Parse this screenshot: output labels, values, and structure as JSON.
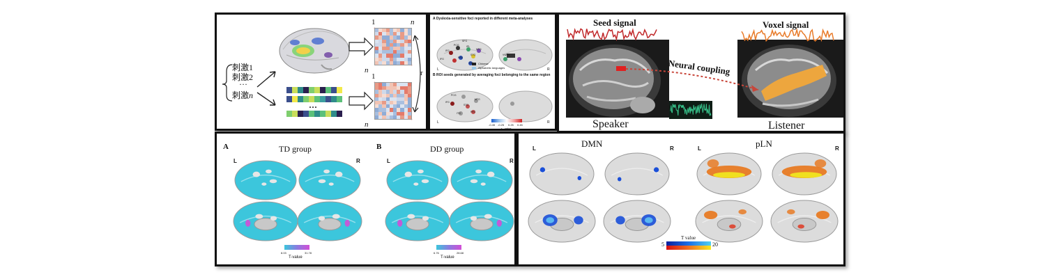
{
  "panel1": {
    "stimuli": [
      "刺激1",
      "刺激2",
      "···",
      "刺激"
    ],
    "stimulus_n": "n",
    "matrix_top_label_1": "1",
    "matrix_top_label_n": "n",
    "matrix_side_label_n": "n",
    "matrix_bottom_label_1": "1",
    "matrix_bottom_side_label_n": "n",
    "bar_dots": "···",
    "right_label": "r"
  },
  "panel2": {
    "title_a": "A  Dyslexia-sensitive foci reported in different meta-analyses",
    "title_b": "B  ROI seeds generated by averaging foci belonging to the same region",
    "legend_chinese": "Chinese",
    "legend_alphabetic": "Alphabetic languages",
    "side_l": "L",
    "side_r": "R",
    "foci_labels_a": [
      "IFG",
      "PCG",
      "FFG",
      "IPL",
      "STG",
      "MTG",
      "IFG",
      "SFG",
      "ITG",
      "VWFA"
    ],
    "foci_labels_b": [
      "IFG",
      "PCG",
      "STG",
      "MTG",
      "FFG",
      "ITG"
    ],
    "colorbar_ticks": [
      "-0.45",
      "-0.25",
      "0.25",
      "0.45"
    ],
    "colorbar_label": "r - value"
  },
  "panel3": {
    "seed_label": "Seed signal",
    "voxel_label": "Voxel signal",
    "coupling_label": "Neural coupling",
    "speaker_label": "Speaker",
    "listener_label": "Listener"
  },
  "panel4": {
    "label_a": "A",
    "label_b": "B",
    "title_td": "TD group",
    "title_dd": "DD group",
    "side_l": "L",
    "side_r": "R",
    "td_min": "8.03",
    "td_max": "31.78",
    "dd_min": "6.76",
    "dd_max": "28.68",
    "tvalue": "T-value"
  },
  "panel5": {
    "side_l": "L",
    "side_r": "R",
    "title_dmn": "DMN",
    "title_pln": "pLN",
    "tvalue": "T value",
    "min": "5",
    "max": "20"
  },
  "colors": {
    "cyan_brain": "#3cc6dc",
    "purple_hot": "#d24fd6",
    "dmn_blue": "#1a4fd8",
    "pln_orange": "#e8761a",
    "pln_yellow": "#f0e020",
    "seed_red": "#c0282a",
    "voxel_orange": "#e87b2a",
    "arrow_red": "#c8463a",
    "wave_green": "#36c28a"
  }
}
